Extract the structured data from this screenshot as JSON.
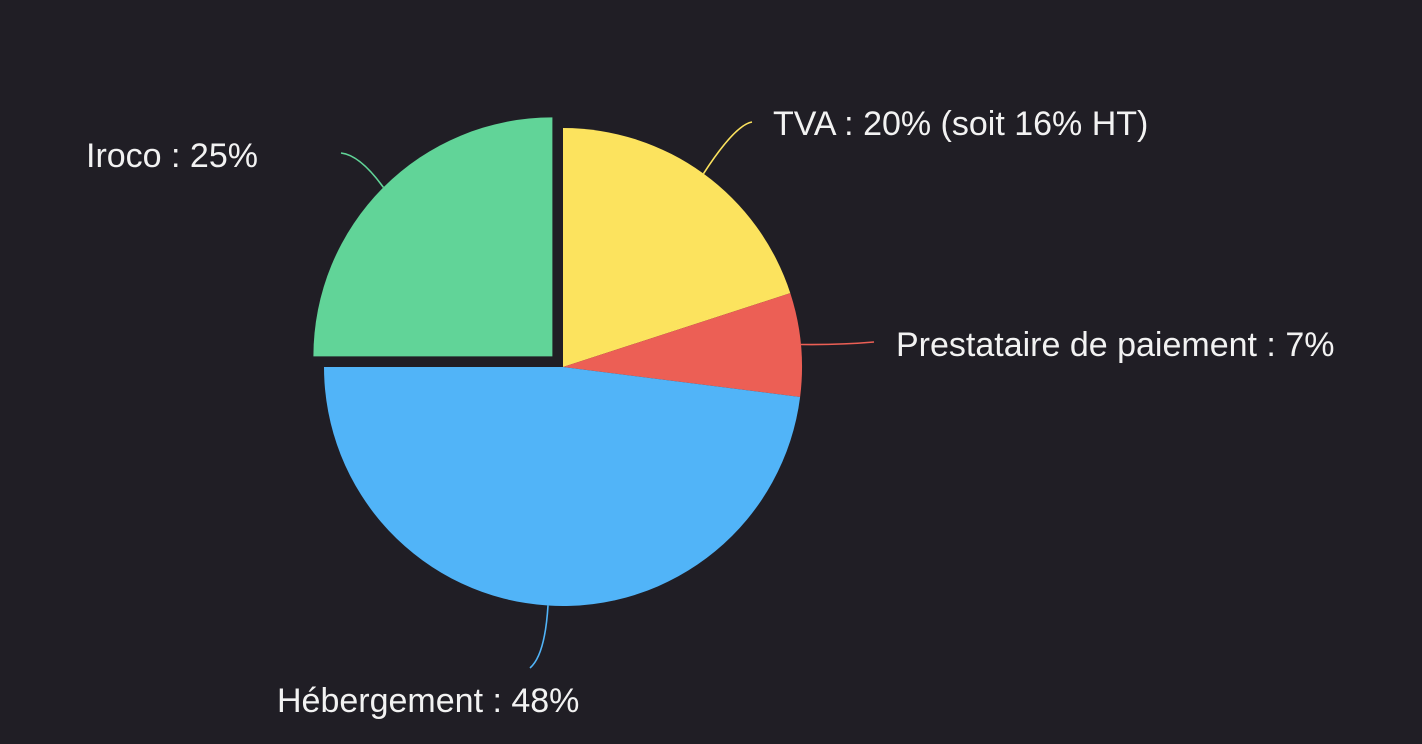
{
  "chart_data": {
    "type": "pie",
    "title": "",
    "slices": [
      {
        "name": "TVA",
        "value": 20,
        "label": "TVA  : 20% (soit 16% HT)",
        "color": "#fce35e"
      },
      {
        "name": "Prestataire de paiement",
        "value": 7,
        "label": "Prestataire de paiement  : 7%",
        "color": "#ec5f55"
      },
      {
        "name": "Hébergement",
        "value": 48,
        "label": "Hébergement  : 48%",
        "color": "#51b4f8"
      },
      {
        "name": "Iroco",
        "value": 25,
        "label": "Iroco  : 25%",
        "color": "#61d498",
        "exploded": true
      }
    ],
    "start_angle": "12 o'clock",
    "direction": "clockwise",
    "legend": "none",
    "background": "#201e25"
  }
}
